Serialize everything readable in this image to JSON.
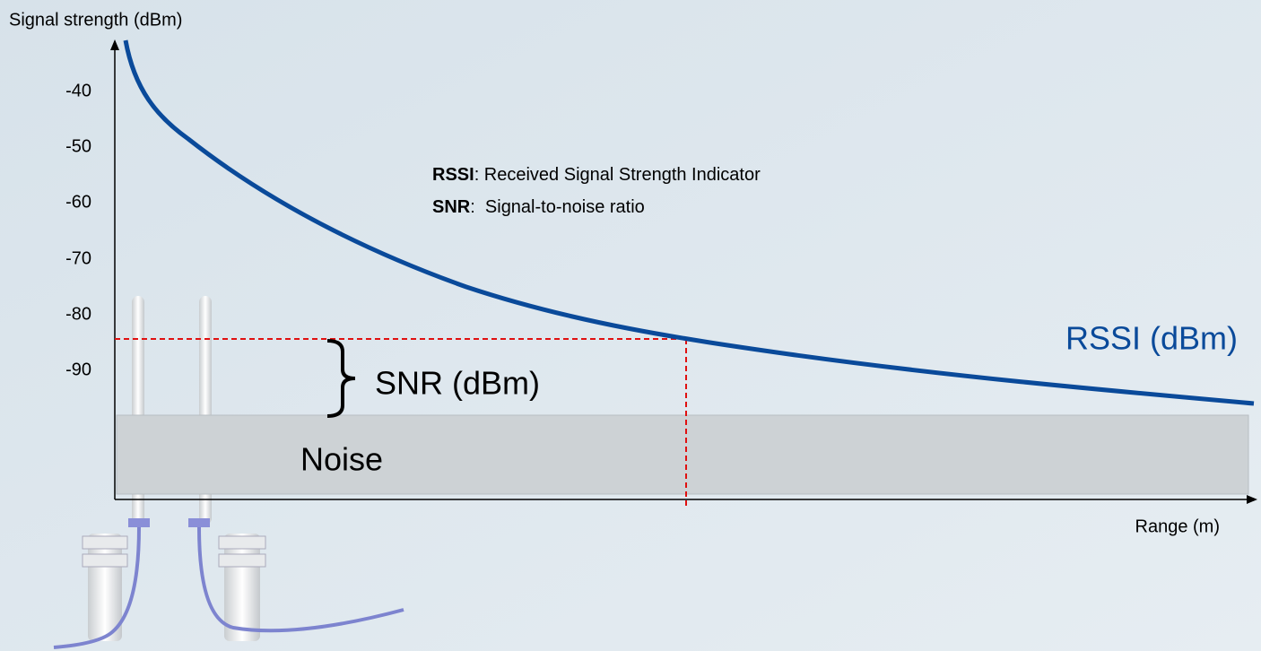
{
  "axis": {
    "y_label": "Signal strength (dBm)",
    "x_label": "Range (m)",
    "y_ticks": [
      "-40",
      "-50",
      "-60",
      "-70",
      "-80",
      "-90"
    ]
  },
  "labels": {
    "rssi_curve": "RSSI (dBm)",
    "snr": "SNR (dBm)",
    "noise": "Noise"
  },
  "legend": [
    {
      "term": "RSSI",
      "definition": ": Received Signal Strength Indicator"
    },
    {
      "term": "SNR",
      "definition": ":  Signal-to-noise ratio"
    }
  ]
}
